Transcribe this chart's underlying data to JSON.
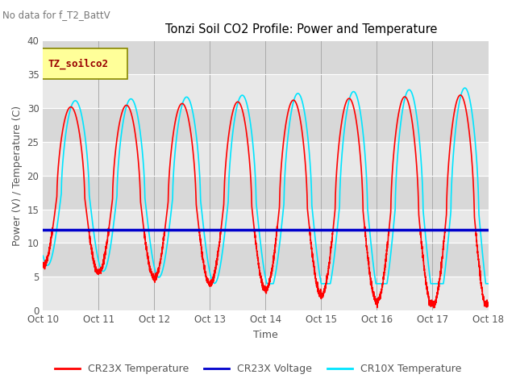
{
  "title": "Tonzi Soil CO2 Profile: Power and Temperature",
  "subtitle": "No data for f_T2_BattV",
  "xlabel": "Time",
  "ylabel": "Power (V) / Temperature (C)",
  "ylim": [
    0,
    40
  ],
  "xlim": [
    0,
    8
  ],
  "xtick_labels": [
    "Oct 10",
    "Oct 11",
    "Oct 12",
    "Oct 13",
    "Oct 14",
    "Oct 15",
    "Oct 16",
    "Oct 17",
    "Oct 18"
  ],
  "ytick_values": [
    0,
    5,
    10,
    15,
    20,
    25,
    30,
    35,
    40
  ],
  "legend_label_box": "TZ_soilco2",
  "plot_bg_color": "#dcdcdc",
  "cr23x_temp_color": "#ff0000",
  "cr23x_volt_color": "#0000cc",
  "cr10x_temp_color": "#00e5ff",
  "cr23x_volt_value": 12.0,
  "legend_entries": [
    "CR23X Temperature",
    "CR23X Voltage",
    "CR10X Temperature"
  ]
}
